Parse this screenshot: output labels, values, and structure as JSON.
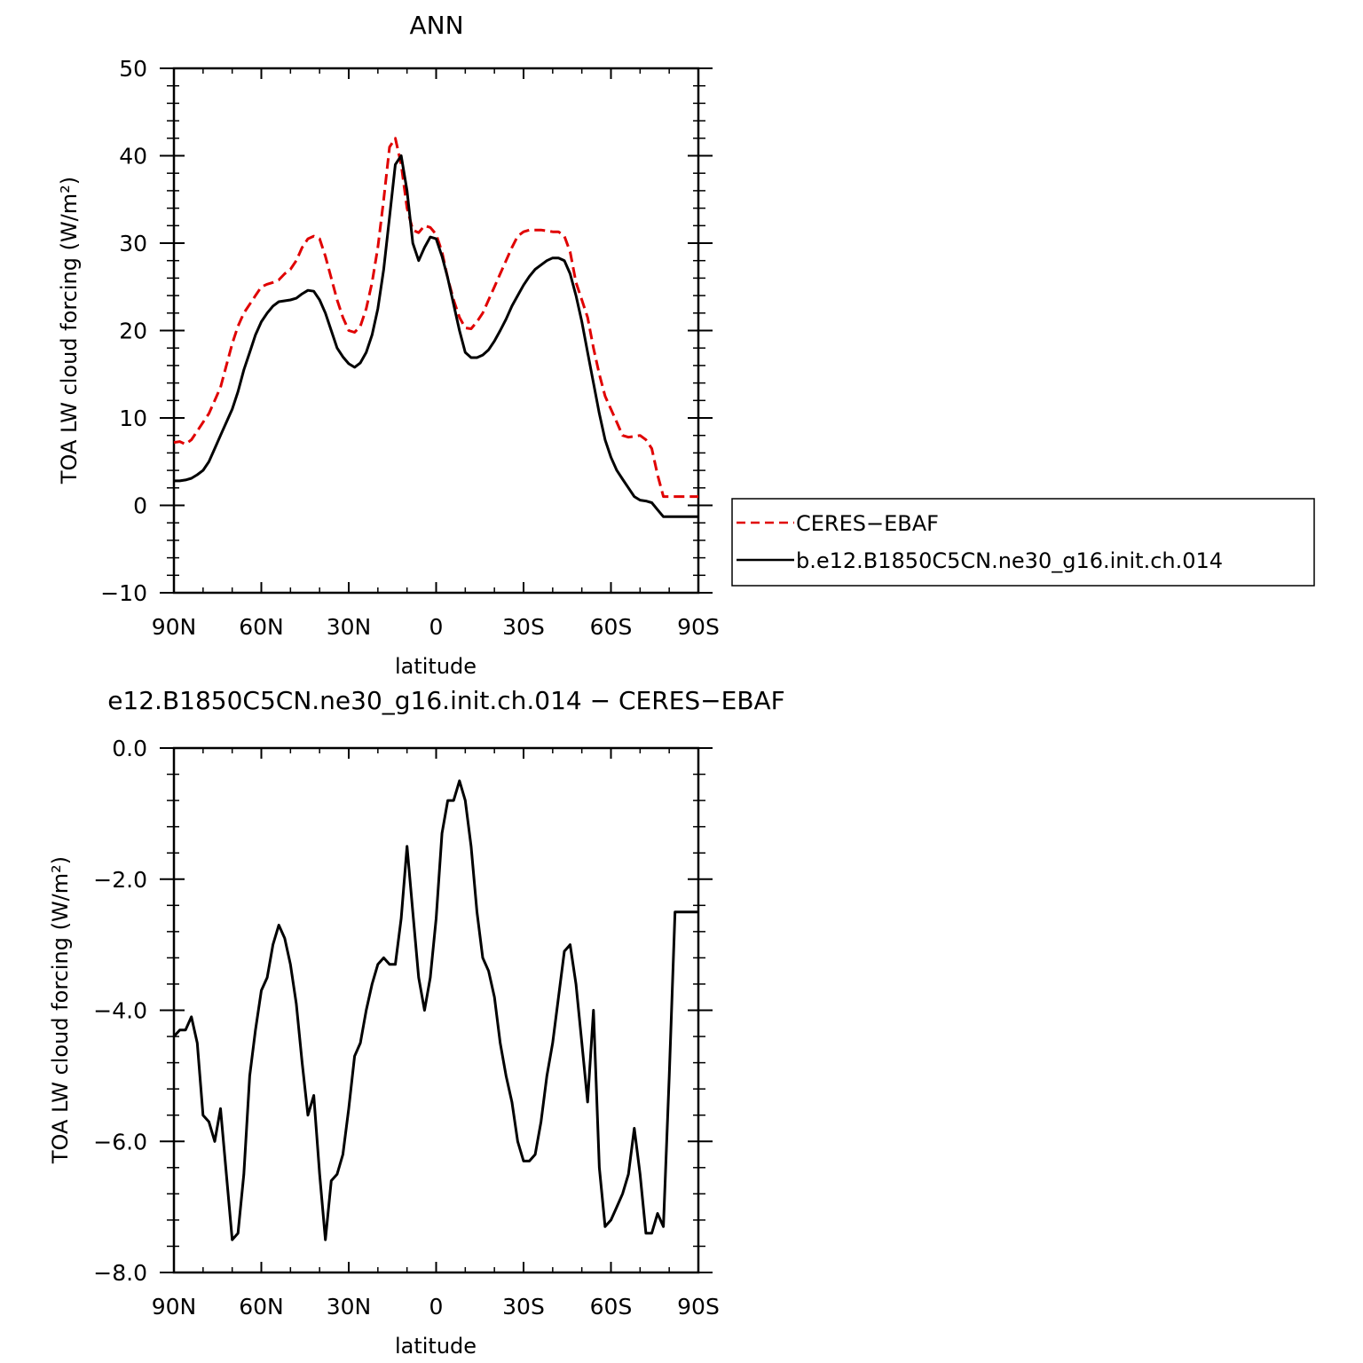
{
  "chart_data": [
    {
      "type": "line",
      "title": "ANN",
      "xlabel": "latitude",
      "ylabel": "TOA LW cloud forcing (W/m²)",
      "xlim": [
        90,
        -90
      ],
      "ylim": [
        -10,
        50
      ],
      "x_ticks": [
        90,
        60,
        30,
        0,
        -30,
        -60,
        -90
      ],
      "x_tick_labels": [
        "90N",
        "60N",
        "30N",
        "0",
        "30S",
        "60S",
        "90S"
      ],
      "y_ticks": [
        -10,
        0,
        10,
        20,
        30,
        40,
        50
      ],
      "y_tick_labels": [
        "−10",
        "0",
        "10",
        "20",
        "30",
        "40",
        "50"
      ],
      "legend": {
        "placement": "right",
        "entries": [
          "CERES−EBAF",
          "b.e12.B1850C5CN.ne30_g16.init.ch.014"
        ]
      },
      "series": [
        {
          "name": "CERES−EBAF",
          "color": "#e00000",
          "style": "dashed",
          "x": [
            90,
            88,
            86,
            84,
            82,
            80,
            78,
            76,
            74,
            72,
            70,
            68,
            66,
            64,
            62,
            60,
            58,
            56,
            54,
            52,
            50,
            48,
            46,
            44,
            42,
            40,
            38,
            36,
            34,
            32,
            30,
            28,
            26,
            24,
            22,
            20,
            18,
            16,
            14,
            12,
            10,
            8,
            6,
            4,
            2,
            0,
            -2,
            -4,
            -6,
            -8,
            -10,
            -12,
            -14,
            -16,
            -18,
            -20,
            -22,
            -24,
            -26,
            -28,
            -30,
            -32,
            -34,
            -36,
            -38,
            -40,
            -42,
            -44,
            -46,
            -48,
            -50,
            -52,
            -54,
            -56,
            -58,
            -60,
            -62,
            -64,
            -66,
            -68,
            -70,
            -72,
            -74,
            -76,
            -78,
            -80,
            -82,
            -84,
            -86,
            -88,
            -90
          ],
          "y": [
            7.2,
            7.3,
            7.0,
            7.5,
            8.5,
            9.5,
            10.5,
            12.0,
            13.5,
            16.0,
            18.5,
            20.5,
            22.0,
            23.0,
            24.0,
            25.0,
            25.3,
            25.5,
            25.8,
            26.5,
            27.0,
            28.0,
            29.5,
            30.5,
            30.8,
            30.5,
            28.5,
            26.0,
            23.5,
            21.5,
            20.0,
            19.8,
            20.5,
            22.5,
            25.5,
            29.5,
            35.0,
            41.0,
            42.0,
            39.0,
            34.0,
            31.5,
            31.2,
            32.0,
            31.8,
            31.0,
            29.0,
            26.0,
            23.5,
            21.5,
            20.3,
            20.2,
            21.0,
            22.0,
            23.5,
            25.0,
            26.5,
            28.0,
            29.5,
            30.8,
            31.3,
            31.5,
            31.5,
            31.5,
            31.4,
            31.3,
            31.3,
            30.8,
            29.0,
            25.5,
            23.5,
            21.5,
            18.0,
            15.0,
            12.5,
            11.0,
            9.5,
            8.0,
            7.8,
            7.9,
            8.0,
            7.5,
            6.5,
            3.5,
            1.0,
            1.0,
            1.0,
            1.0,
            1.0,
            1.0,
            1.0
          ]
        },
        {
          "name": "b.e12.B1850C5CN.ne30_g16.init.ch.014",
          "color": "#000000",
          "style": "solid",
          "x": [
            90,
            88,
            86,
            84,
            82,
            80,
            78,
            76,
            74,
            72,
            70,
            68,
            66,
            64,
            62,
            60,
            58,
            56,
            54,
            52,
            50,
            48,
            46,
            44,
            42,
            40,
            38,
            36,
            34,
            32,
            30,
            28,
            26,
            24,
            22,
            20,
            18,
            16,
            14,
            12,
            10,
            8,
            6,
            4,
            2,
            0,
            -2,
            -4,
            -6,
            -8,
            -10,
            -12,
            -14,
            -16,
            -18,
            -20,
            -22,
            -24,
            -26,
            -28,
            -30,
            -32,
            -34,
            -36,
            -38,
            -40,
            -42,
            -44,
            -46,
            -48,
            -50,
            -52,
            -54,
            -56,
            -58,
            -60,
            -62,
            -64,
            -66,
            -68,
            -70,
            -72,
            -74,
            -76,
            -78,
            -80,
            -82,
            -84,
            -86,
            -88,
            -90
          ],
          "y": [
            2.8,
            2.8,
            2.9,
            3.1,
            3.5,
            4.0,
            5.0,
            6.5,
            8.0,
            9.5,
            11.0,
            13.0,
            15.5,
            17.5,
            19.5,
            21.0,
            22.0,
            22.8,
            23.3,
            23.4,
            23.5,
            23.7,
            24.2,
            24.6,
            24.5,
            23.5,
            22.0,
            20.0,
            18.0,
            17.0,
            16.2,
            15.8,
            16.3,
            17.5,
            19.5,
            22.5,
            27.0,
            33.0,
            39.0,
            40.0,
            36.0,
            30.0,
            28.0,
            29.5,
            30.7,
            30.5,
            28.5,
            26.0,
            23.0,
            20.0,
            17.5,
            16.9,
            16.9,
            17.2,
            17.8,
            18.8,
            20.0,
            21.3,
            22.8,
            24.0,
            25.2,
            26.2,
            27.0,
            27.5,
            28.0,
            28.3,
            28.3,
            28.0,
            26.5,
            24.0,
            21.0,
            17.5,
            14.0,
            10.5,
            7.5,
            5.5,
            4.0,
            3.0,
            2.0,
            1.0,
            0.6,
            0.5,
            0.3,
            -0.5,
            -1.3,
            -1.3,
            -1.3,
            -1.3,
            -1.3,
            -1.3,
            -1.3
          ]
        }
      ]
    },
    {
      "type": "line",
      "title": "e12.B1850C5CN.ne30_g16.init.ch.014 − CERES−EBAF",
      "xlabel": "latitude",
      "ylabel": "TOA LW cloud forcing (W/m²)",
      "xlim": [
        90,
        -90
      ],
      "ylim": [
        -8,
        0
      ],
      "x_ticks": [
        90,
        60,
        30,
        0,
        -30,
        -60,
        -90
      ],
      "x_tick_labels": [
        "90N",
        "60N",
        "30N",
        "0",
        "30S",
        "60S",
        "90S"
      ],
      "y_ticks": [
        -8,
        -6,
        -4,
        -2,
        0
      ],
      "y_tick_labels": [
        "−8.0",
        "−6.0",
        "−4.0",
        "−2.0",
        "0.0"
      ],
      "series": [
        {
          "color": "#000000",
          "style": "solid",
          "x": [
            90,
            88,
            86,
            84,
            82,
            80,
            78,
            76,
            74,
            72,
            70,
            68,
            66,
            64,
            62,
            60,
            58,
            56,
            54,
            52,
            50,
            48,
            46,
            44,
            42,
            40,
            38,
            36,
            34,
            32,
            30,
            28,
            26,
            24,
            22,
            20,
            18,
            16,
            14,
            12,
            10,
            8,
            6,
            4,
            2,
            0,
            -2,
            -4,
            -6,
            -8,
            -10,
            -12,
            -14,
            -16,
            -18,
            -20,
            -22,
            -24,
            -26,
            -28,
            -30,
            -32,
            -34,
            -36,
            -38,
            -40,
            -42,
            -44,
            -46,
            -48,
            -50,
            -52,
            -54,
            -56,
            -58,
            -60,
            -62,
            -64,
            -66,
            -68,
            -70,
            -72,
            -74,
            -76,
            -78,
            -80,
            -82,
            -84,
            -86,
            -88,
            -90
          ],
          "y": [
            -4.4,
            -4.3,
            -4.3,
            -4.1,
            -4.5,
            -5.6,
            -5.7,
            -6.0,
            -5.5,
            -6.5,
            -7.5,
            -7.4,
            -6.5,
            -5.0,
            -4.3,
            -3.7,
            -3.5,
            -3.0,
            -2.7,
            -2.9,
            -3.3,
            -3.9,
            -4.8,
            -5.6,
            -5.3,
            -6.5,
            -7.5,
            -6.6,
            -6.5,
            -6.2,
            -5.5,
            -4.7,
            -4.5,
            -4.0,
            -3.6,
            -3.3,
            -3.2,
            -3.3,
            -3.3,
            -2.6,
            -1.5,
            -2.5,
            -3.5,
            -4.0,
            -3.5,
            -2.6,
            -1.3,
            -0.8,
            -0.8,
            -0.5,
            -0.8,
            -1.5,
            -2.5,
            -3.2,
            -3.4,
            -3.8,
            -4.5,
            -5.0,
            -5.4,
            -6.0,
            -6.3,
            -6.3,
            -6.2,
            -5.7,
            -5.0,
            -4.5,
            -3.8,
            -3.1,
            -3.0,
            -3.6,
            -4.5,
            -5.4,
            -4.0,
            -6.4,
            -7.3,
            -7.2,
            -7.0,
            -6.8,
            -6.5,
            -5.8,
            -6.5,
            -7.4,
            -7.4,
            -7.1,
            -7.3,
            -5.0,
            -2.5,
            -2.5,
            -2.5,
            -2.5,
            -2.5
          ]
        }
      ]
    }
  ]
}
